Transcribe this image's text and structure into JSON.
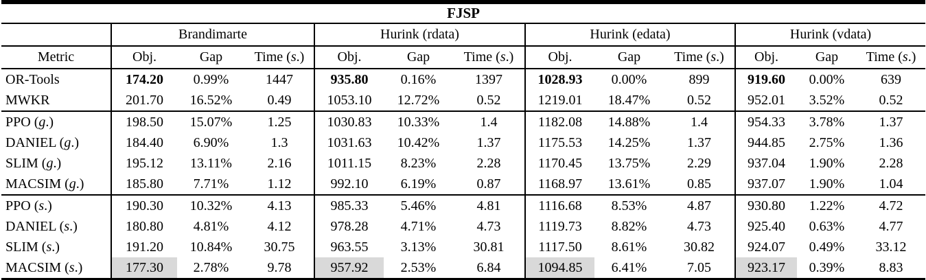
{
  "table": {
    "title": "FJSP",
    "metric_header": "Metric",
    "group_headers": [
      "Brandimarte",
      "Hurink (rdata)",
      "Hurink (edata)",
      "Hurink (vdata)"
    ],
    "sub_headers": [
      "Obj.",
      "Gap",
      "Time (s.)"
    ],
    "highlight_color": "#d9d9d9",
    "rows": [
      {
        "metric": "OR-Tools",
        "obj_bold": true,
        "rule_above": false,
        "highlight_obj": false,
        "cells": [
          [
            "174.20",
            "0.99%",
            "1447"
          ],
          [
            "935.80",
            "0.16%",
            "1397"
          ],
          [
            "1028.93",
            "0.00%",
            "899"
          ],
          [
            "919.60",
            "0.00%",
            "639"
          ]
        ]
      },
      {
        "metric": "MWKR",
        "obj_bold": false,
        "rule_above": false,
        "highlight_obj": false,
        "cells": [
          [
            "201.70",
            "16.52%",
            "0.49"
          ],
          [
            "1053.10",
            "12.72%",
            "0.52"
          ],
          [
            "1219.01",
            "18.47%",
            "0.52"
          ],
          [
            "952.01",
            "3.52%",
            "0.52"
          ]
        ]
      },
      {
        "metric": "PPO (g.)",
        "obj_bold": false,
        "rule_above": true,
        "highlight_obj": false,
        "cells": [
          [
            "198.50",
            "15.07%",
            "1.25"
          ],
          [
            "1030.83",
            "10.33%",
            "1.4"
          ],
          [
            "1182.08",
            "14.88%",
            "1.4"
          ],
          [
            "954.33",
            "3.78%",
            "1.37"
          ]
        ]
      },
      {
        "metric": "DANIEL (g.)",
        "obj_bold": false,
        "rule_above": false,
        "highlight_obj": false,
        "cells": [
          [
            "184.40",
            "6.90%",
            "1.3"
          ],
          [
            "1031.63",
            "10.42%",
            "1.37"
          ],
          [
            "1175.53",
            "14.25%",
            "1.37"
          ],
          [
            "944.85",
            "2.75%",
            "1.36"
          ]
        ]
      },
      {
        "metric": "SLIM (g.)",
        "obj_bold": false,
        "rule_above": false,
        "highlight_obj": false,
        "cells": [
          [
            "195.12",
            "13.11%",
            "2.16"
          ],
          [
            "1011.15",
            "8.23%",
            "2.28"
          ],
          [
            "1170.45",
            "13.75%",
            "2.29"
          ],
          [
            "937.04",
            "1.90%",
            "2.28"
          ]
        ]
      },
      {
        "metric": "MACSIM (g.)",
        "obj_bold": false,
        "rule_above": false,
        "highlight_obj": false,
        "cells": [
          [
            "185.80",
            "7.71%",
            "1.12"
          ],
          [
            "992.10",
            "6.19%",
            "0.87"
          ],
          [
            "1168.97",
            "13.61%",
            "0.85"
          ],
          [
            "937.07",
            "1.90%",
            "1.04"
          ]
        ]
      },
      {
        "metric": "PPO (s.)",
        "obj_bold": false,
        "rule_above": true,
        "highlight_obj": false,
        "cells": [
          [
            "190.30",
            "10.32%",
            "4.13"
          ],
          [
            "985.33",
            "5.46%",
            "4.81"
          ],
          [
            "1116.68",
            "8.53%",
            "4.87"
          ],
          [
            "930.80",
            "1.22%",
            "4.72"
          ]
        ]
      },
      {
        "metric": "DANIEL (s.)",
        "obj_bold": false,
        "rule_above": false,
        "highlight_obj": false,
        "cells": [
          [
            "180.80",
            "4.81%",
            "4.12"
          ],
          [
            "978.28",
            "4.71%",
            "4.73"
          ],
          [
            "1119.73",
            "8.82%",
            "4.73"
          ],
          [
            "925.40",
            "0.63%",
            "4.77"
          ]
        ]
      },
      {
        "metric": "SLIM (s.)",
        "obj_bold": false,
        "rule_above": false,
        "highlight_obj": false,
        "cells": [
          [
            "191.20",
            "10.84%",
            "30.75"
          ],
          [
            "963.55",
            "3.13%",
            "30.81"
          ],
          [
            "1117.50",
            "8.61%",
            "30.82"
          ],
          [
            "924.07",
            "0.49%",
            "33.12"
          ]
        ]
      },
      {
        "metric": "MACSIM (s.)",
        "obj_bold": false,
        "rule_above": false,
        "highlight_obj": true,
        "cells": [
          [
            "177.30",
            "2.78%",
            "9.78"
          ],
          [
            "957.92",
            "2.53%",
            "6.84"
          ],
          [
            "1094.85",
            "6.41%",
            "7.05"
          ],
          [
            "923.17",
            "0.39%",
            "8.83"
          ]
        ]
      }
    ]
  }
}
